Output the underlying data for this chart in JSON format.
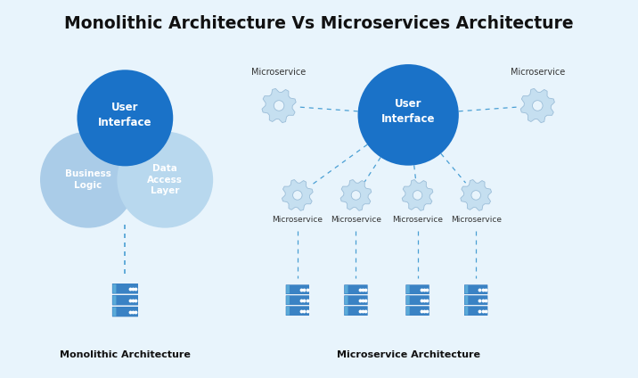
{
  "title": "Monolithic Architecture Vs Microservices Architecture",
  "background_color": "#e8f4fc",
  "title_fontsize": 13.5,
  "title_fontweight": "bold",
  "title_color": "#111111",
  "mono_label": "Monolithic Architecture",
  "micro_label": "Microservice Architecture",
  "ui_circle_color": "#1a72c8",
  "bl_circle_color": "#aacce8",
  "dal_circle_color": "#b8d8ee",
  "ui_text": "User\nInterface",
  "bl_text": "Business\nLogic",
  "dal_text": "Data\nAccess\nLayer",
  "microservice_top_left_label": "Microservice",
  "microservice_top_right_label": "Microservice",
  "microservice_bottom_labels": [
    "Microservice",
    "Microservice",
    "Microservice",
    "Microservice"
  ],
  "dashed_color": "#4a9fd4",
  "server_color": "#3a82c4",
  "server_color_light": "#5aaad8",
  "gear_color": "#c5dff0",
  "gear_edge_color": "#9bbdd8"
}
